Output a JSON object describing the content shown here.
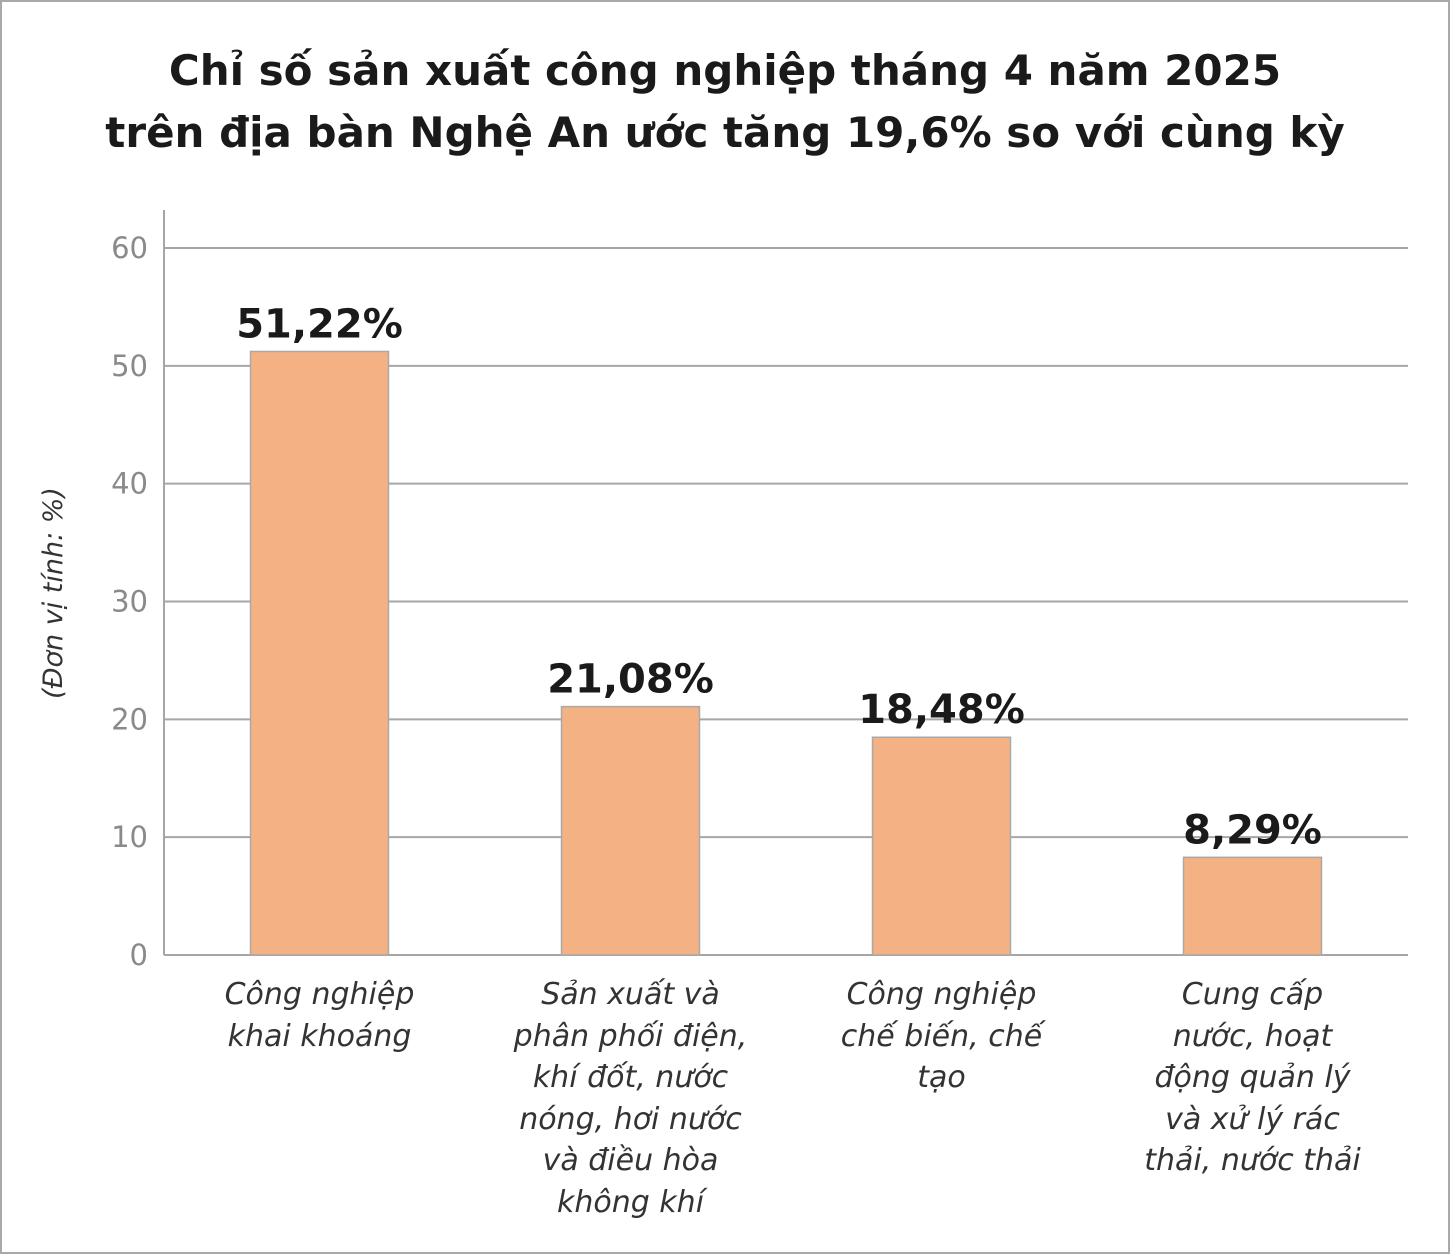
{
  "chart_data": {
    "type": "bar",
    "title_lines": [
      "Chỉ số sản xuất công nghiệp tháng 4 năm 2025",
      "trên địa bàn Nghệ An ước tăng 19,6% so với cùng kỳ"
    ],
    "ylabel": "(Đơn vị tính: %)",
    "xlabel": "",
    "ylim": [
      0,
      60
    ],
    "yticks": [
      0,
      10,
      20,
      30,
      40,
      50,
      60
    ],
    "grid": true,
    "categories": [
      [
        "Công nghiệp",
        "khai khoáng"
      ],
      [
        "Sản xuất và",
        "phân phối điện,",
        "khí đốt, nước",
        "nóng, hơi nước",
        "và điều hòa",
        "không khí"
      ],
      [
        "Công nghiệp",
        "chế biến, chế",
        "tạo"
      ],
      [
        "Cung cấp",
        "nước, hoạt",
        "động quản lý",
        "và xử lý rác",
        "thải, nước thải"
      ]
    ],
    "values": [
      51.22,
      21.08,
      18.48,
      8.29
    ],
    "value_labels": [
      "51,22%",
      "21,08%",
      "18,48%",
      "8,29%"
    ],
    "bar_color": "#f4b183"
  }
}
